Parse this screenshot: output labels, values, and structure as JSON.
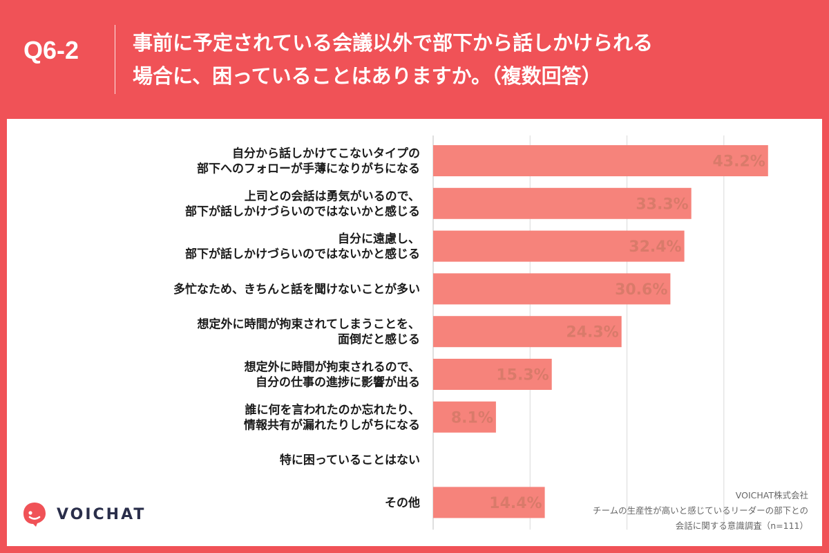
{
  "header": {
    "question_number": "Q6-2",
    "title_line1": "事前に予定されている会議以外で部下から話しかけられる",
    "title_line2": "場合に、困っていることはありますか。（複数回答）"
  },
  "brand": {
    "name": "VOICHAT",
    "icon": "voichat-logo-icon"
  },
  "source": {
    "company": "VOICHAT株式会社",
    "survey_line1": "チームの生産性が高いと感じているリーダーの部下との",
    "survey_line2": "会話に関する意識調査（n=111）"
  },
  "colors": {
    "background": "#f05257",
    "bar": "#f6837b",
    "value_label": "#d97a6a",
    "grid": "#d9d9d9"
  },
  "chart_data": {
    "type": "bar",
    "orientation": "horizontal",
    "categories": [
      [
        "自分から話しかけてこないタイプの",
        "部下へのフォローが手薄になりがちになる"
      ],
      [
        "上司との会話は勇気がいるので、",
        "部下が話しかけづらいのではないかと感じる"
      ],
      [
        "自分に遠慮し、",
        "部下が話しかけづらいのではないかと感じる"
      ],
      [
        "多忙なため、きちんと話を聞けないことが多い"
      ],
      [
        "想定外に時間が拘束されてしまうことを、",
        "面倒だと感じる"
      ],
      [
        "想定外に時間が拘束されるので、",
        "自分の仕事の進捗に影響が出る"
      ],
      [
        "誰に何を言われたのか忘れたり、",
        "情報共有が漏れたりしがちになる"
      ],
      [
        "特に困っていることはない"
      ],
      [
        "その他"
      ]
    ],
    "values": [
      43.2,
      33.3,
      32.4,
      30.6,
      24.3,
      15.3,
      8.1,
      null,
      14.4
    ],
    "value_labels": [
      "43.2%",
      "33.3%",
      "32.4%",
      "30.6%",
      "24.3%",
      "15.3%",
      "8.1%",
      "",
      "14.4%"
    ],
    "unit": "%",
    "xlim": [
      0,
      45
    ],
    "grid": true,
    "gridlines_at": [
      0,
      12.5,
      25,
      37.5
    ],
    "title": "",
    "xlabel": "",
    "ylabel": ""
  }
}
